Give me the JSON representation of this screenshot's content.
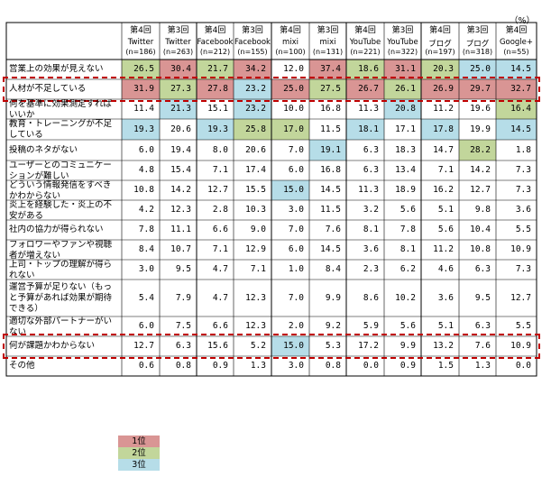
{
  "unit_label": "（%）",
  "colors": {
    "rank1": "#d99594",
    "rank2": "#c2d69b",
    "rank3": "#b6dde8",
    "highlight": "#c00000"
  },
  "legend": [
    {
      "rank": 1,
      "label": "1位"
    },
    {
      "rank": 2,
      "label": "2位"
    },
    {
      "rank": 3,
      "label": "3位"
    }
  ],
  "chart_data": {
    "type": "table",
    "columns": [
      {
        "round": "第4回",
        "service": "Twitter",
        "n": "(n=186)"
      },
      {
        "round": "第3回",
        "service": "Twitter",
        "n": "(n=263)"
      },
      {
        "round": "第4回",
        "service": "Facebook",
        "n": "(n=212)"
      },
      {
        "round": "第3回",
        "service": "Facebook",
        "n": "(n=155)"
      },
      {
        "round": "第4回",
        "service": "mixi",
        "n": "(n=100)"
      },
      {
        "round": "第3回",
        "service": "mixi",
        "n": "(n=131)"
      },
      {
        "round": "第4回",
        "service": "YouTube",
        "n": "(n=221)"
      },
      {
        "round": "第3回",
        "service": "YouTube",
        "n": "(n=322)"
      },
      {
        "round": "第4回",
        "service": "ブログ",
        "n": "(n=197)"
      },
      {
        "round": "第3回",
        "service": "ブログ",
        "n": "(n=318)"
      },
      {
        "round": "第4回",
        "service": "Google+",
        "n": "(n=55)"
      }
    ],
    "rows": [
      {
        "label": "営業上の効果が見えない",
        "values": [
          "26.5",
          "30.4",
          "21.7",
          "34.2",
          "12.0",
          "37.4",
          "18.6",
          "31.1",
          "20.3",
          "25.0",
          "14.5"
        ],
        "ranks": [
          2,
          1,
          2,
          1,
          0,
          1,
          2,
          1,
          2,
          3,
          3
        ],
        "highlight": false
      },
      {
        "label": "人材が不足している",
        "values": [
          "31.9",
          "27.3",
          "27.8",
          "23.2",
          "25.0",
          "27.5",
          "26.7",
          "26.1",
          "26.9",
          "29.7",
          "32.7"
        ],
        "ranks": [
          1,
          2,
          1,
          3,
          1,
          2,
          1,
          2,
          1,
          1,
          1
        ],
        "highlight": true
      },
      {
        "label": "何を基準に効果測定すればいいか",
        "values": [
          "11.4",
          "21.3",
          "15.1",
          "23.2",
          "10.0",
          "16.8",
          "11.3",
          "20.8",
          "11.2",
          "19.6",
          "16.4"
        ],
        "ranks": [
          0,
          3,
          0,
          3,
          0,
          0,
          0,
          3,
          0,
          0,
          2
        ],
        "highlight": false
      },
      {
        "label": "教育・トレーニングが不足している",
        "values": [
          "19.3",
          "20.6",
          "19.3",
          "25.8",
          "17.0",
          "11.5",
          "18.1",
          "17.1",
          "17.8",
          "19.9",
          "14.5"
        ],
        "ranks": [
          3,
          0,
          3,
          2,
          2,
          0,
          3,
          0,
          3,
          0,
          3
        ],
        "highlight": false
      },
      {
        "label": "投稿のネタがない",
        "values": [
          "6.0",
          "19.4",
          "8.0",
          "20.6",
          "7.0",
          "19.1",
          "6.3",
          "18.3",
          "14.7",
          "28.2",
          "1.8"
        ],
        "ranks": [
          0,
          0,
          0,
          0,
          0,
          3,
          0,
          0,
          0,
          2,
          0
        ],
        "highlight": false
      },
      {
        "label": "ユーザーとのコミュニケーションが難しい",
        "values": [
          "4.8",
          "15.4",
          "7.1",
          "17.4",
          "6.0",
          "16.8",
          "6.3",
          "13.4",
          "7.1",
          "14.2",
          "7.3"
        ],
        "ranks": [
          0,
          0,
          0,
          0,
          0,
          0,
          0,
          0,
          0,
          0,
          0
        ],
        "highlight": false
      },
      {
        "label": "どういう情報発信をすべきかわからない",
        "values": [
          "10.8",
          "14.2",
          "12.7",
          "15.5",
          "15.0",
          "14.5",
          "11.3",
          "18.9",
          "16.2",
          "12.7",
          "7.3"
        ],
        "ranks": [
          0,
          0,
          0,
          0,
          3,
          0,
          0,
          0,
          0,
          0,
          0
        ],
        "highlight": false
      },
      {
        "label": "炎上を経験した・炎上の不安がある",
        "values": [
          "4.2",
          "12.3",
          "2.8",
          "10.3",
          "3.0",
          "11.5",
          "3.2",
          "5.6",
          "5.1",
          "9.8",
          "3.6"
        ],
        "ranks": [
          0,
          0,
          0,
          0,
          0,
          0,
          0,
          0,
          0,
          0,
          0
        ],
        "highlight": false
      },
      {
        "label": "社内の協力が得られない",
        "values": [
          "7.8",
          "11.1",
          "6.6",
          "9.0",
          "7.0",
          "7.6",
          "8.1",
          "7.8",
          "5.6",
          "10.4",
          "5.5"
        ],
        "ranks": [
          0,
          0,
          0,
          0,
          0,
          0,
          0,
          0,
          0,
          0,
          0
        ],
        "highlight": false
      },
      {
        "label": "フォロワーやファンや視聴者が増えない",
        "values": [
          "8.4",
          "10.7",
          "7.1",
          "12.9",
          "6.0",
          "14.5",
          "3.6",
          "8.1",
          "11.2",
          "10.8",
          "10.9"
        ],
        "ranks": [
          0,
          0,
          0,
          0,
          0,
          0,
          0,
          0,
          0,
          0,
          0
        ],
        "highlight": false
      },
      {
        "label": "上司・トップの理解が得られない",
        "values": [
          "3.0",
          "9.5",
          "4.7",
          "7.1",
          "1.0",
          "8.4",
          "2.3",
          "6.2",
          "4.6",
          "6.3",
          "7.3"
        ],
        "ranks": [
          0,
          0,
          0,
          0,
          0,
          0,
          0,
          0,
          0,
          0,
          0
        ],
        "highlight": false
      },
      {
        "label": "運営予算が足りない（もっと予算があれば効果が期待できる）",
        "values": [
          "5.4",
          "7.9",
          "4.7",
          "12.3",
          "7.0",
          "9.9",
          "8.6",
          "10.2",
          "3.6",
          "9.5",
          "12.7"
        ],
        "ranks": [
          0,
          0,
          0,
          0,
          0,
          0,
          0,
          0,
          0,
          0,
          0
        ],
        "highlight": false
      },
      {
        "label": "適切な外部パートナーがいない",
        "values": [
          "6.0",
          "7.5",
          "6.6",
          "12.3",
          "2.0",
          "9.2",
          "5.9",
          "5.6",
          "5.1",
          "6.3",
          "5.5"
        ],
        "ranks": [
          0,
          0,
          0,
          0,
          0,
          0,
          0,
          0,
          0,
          0,
          0
        ],
        "highlight": false
      },
      {
        "label": "何が課題かわからない",
        "values": [
          "12.7",
          "6.3",
          "15.6",
          "5.2",
          "15.0",
          "5.3",
          "17.2",
          "9.9",
          "13.2",
          "7.6",
          "10.9"
        ],
        "ranks": [
          0,
          0,
          0,
          0,
          3,
          0,
          0,
          0,
          0,
          0,
          0
        ],
        "highlight": true
      },
      {
        "label": "その他",
        "values": [
          "0.6",
          "0.8",
          "0.9",
          "1.3",
          "3.0",
          "0.8",
          "0.0",
          "0.9",
          "1.5",
          "1.3",
          "0.0"
        ],
        "ranks": [
          0,
          0,
          0,
          0,
          0,
          0,
          0,
          0,
          0,
          0,
          0
        ],
        "highlight": false
      }
    ]
  }
}
